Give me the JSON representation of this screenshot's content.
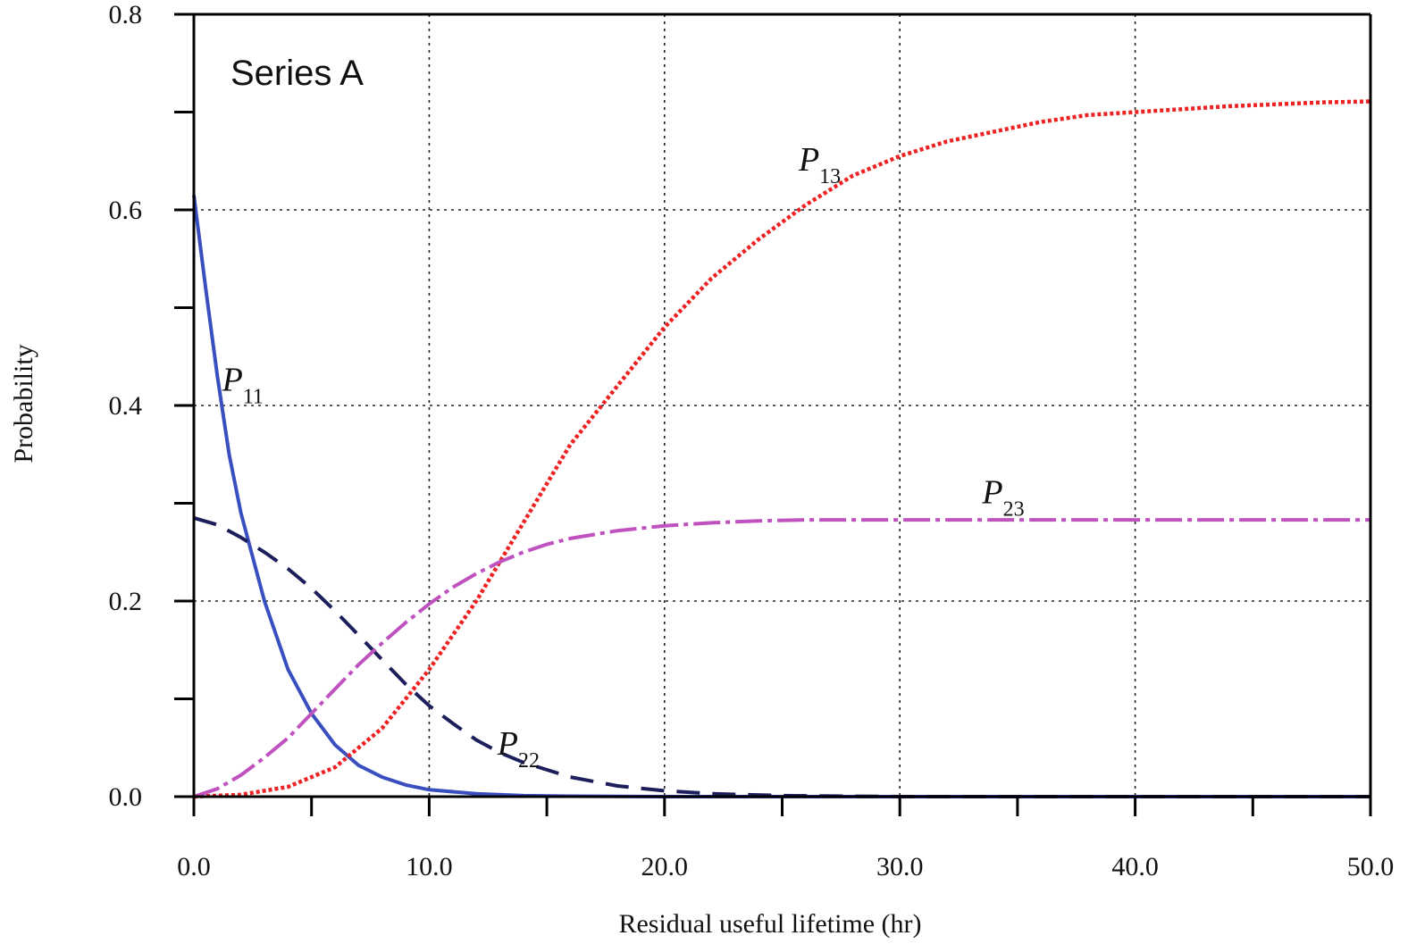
{
  "chart_data": {
    "type": "line",
    "title": "",
    "annotation": "Series A",
    "xlabel": "Residual useful lifetime (hr)",
    "ylabel": "Probability",
    "xlim": [
      0,
      50
    ],
    "ylim": [
      0,
      0.8
    ],
    "x_ticks": [
      0,
      10,
      20,
      30,
      40,
      50
    ],
    "x_tick_labels": [
      "0.0",
      "10.0",
      "20.0",
      "30.0",
      "40.0",
      "50.0"
    ],
    "x_minor_ticks": [
      5,
      15,
      25,
      35,
      45
    ],
    "y_ticks": [
      0,
      0.2,
      0.4,
      0.6,
      0.8
    ],
    "y_tick_labels": [
      "0.0",
      "0.2",
      "0.4",
      "0.6",
      "0.8"
    ],
    "y_minor_ticks": [
      0.1,
      0.3,
      0.5,
      0.7
    ],
    "grid": true,
    "legend": "inline labels",
    "series": [
      {
        "name": "P11",
        "label_main": "P",
        "label_sub": "11",
        "color": "#3a4fbf",
        "style": "solid",
        "x": [
          0,
          0.5,
          1,
          1.5,
          2,
          3,
          4,
          5,
          6,
          7,
          8,
          9,
          10,
          12,
          14,
          16,
          20,
          30,
          40,
          50
        ],
        "y": [
          0.615,
          0.52,
          0.43,
          0.35,
          0.29,
          0.2,
          0.13,
          0.085,
          0.053,
          0.032,
          0.02,
          0.012,
          0.007,
          0.003,
          0.001,
          0.0005,
          0,
          0,
          0,
          0
        ]
      },
      {
        "name": "P22",
        "label_main": "P",
        "label_sub": "22",
        "color": "#1c1f5c",
        "style": "dashed",
        "x": [
          0,
          1,
          2,
          3,
          4,
          5,
          6,
          7,
          8,
          9,
          10,
          11,
          12,
          13,
          14,
          16,
          18,
          20,
          22,
          25,
          30,
          40,
          50
        ],
        "y": [
          0.285,
          0.278,
          0.265,
          0.25,
          0.233,
          0.213,
          0.19,
          0.165,
          0.14,
          0.115,
          0.093,
          0.075,
          0.058,
          0.045,
          0.035,
          0.02,
          0.011,
          0.006,
          0.003,
          0.001,
          0,
          0,
          0
        ]
      },
      {
        "name": "P13",
        "label_main": "P",
        "label_sub": "13",
        "color": "#ee2222",
        "style": "dotted",
        "x": [
          0,
          2,
          4,
          6,
          8,
          10,
          12,
          14,
          16,
          18,
          20,
          22,
          24,
          26,
          28,
          30,
          32,
          34,
          36,
          38,
          40,
          44,
          48,
          50
        ],
        "y": [
          0,
          0.002,
          0.01,
          0.03,
          0.07,
          0.13,
          0.2,
          0.28,
          0.36,
          0.42,
          0.48,
          0.53,
          0.57,
          0.605,
          0.635,
          0.655,
          0.67,
          0.68,
          0.69,
          0.697,
          0.7,
          0.706,
          0.71,
          0.711
        ]
      },
      {
        "name": "P23",
        "label_main": "P",
        "label_sub": "23",
        "color": "#c052c0",
        "style": "dash-dot",
        "x": [
          0,
          1,
          2,
          3,
          4,
          5,
          6,
          7,
          8,
          9,
          10,
          11,
          12,
          13,
          14,
          15,
          16,
          18,
          20,
          22,
          24,
          26,
          30,
          40,
          50
        ],
        "y": [
          0,
          0.008,
          0.022,
          0.04,
          0.06,
          0.085,
          0.11,
          0.135,
          0.157,
          0.178,
          0.197,
          0.214,
          0.228,
          0.24,
          0.25,
          0.258,
          0.264,
          0.272,
          0.277,
          0.28,
          0.282,
          0.283,
          0.283,
          0.283,
          0.283
        ]
      }
    ],
    "series_labels": [
      {
        "series": "P11",
        "at_x": 1.2,
        "at_y": 0.415
      },
      {
        "series": "P22",
        "at_x": 12.9,
        "at_y": 0.043
      },
      {
        "series": "P13",
        "at_x": 25.7,
        "at_y": 0.64
      },
      {
        "series": "P23",
        "at_x": 33.5,
        "at_y": 0.3
      }
    ]
  }
}
